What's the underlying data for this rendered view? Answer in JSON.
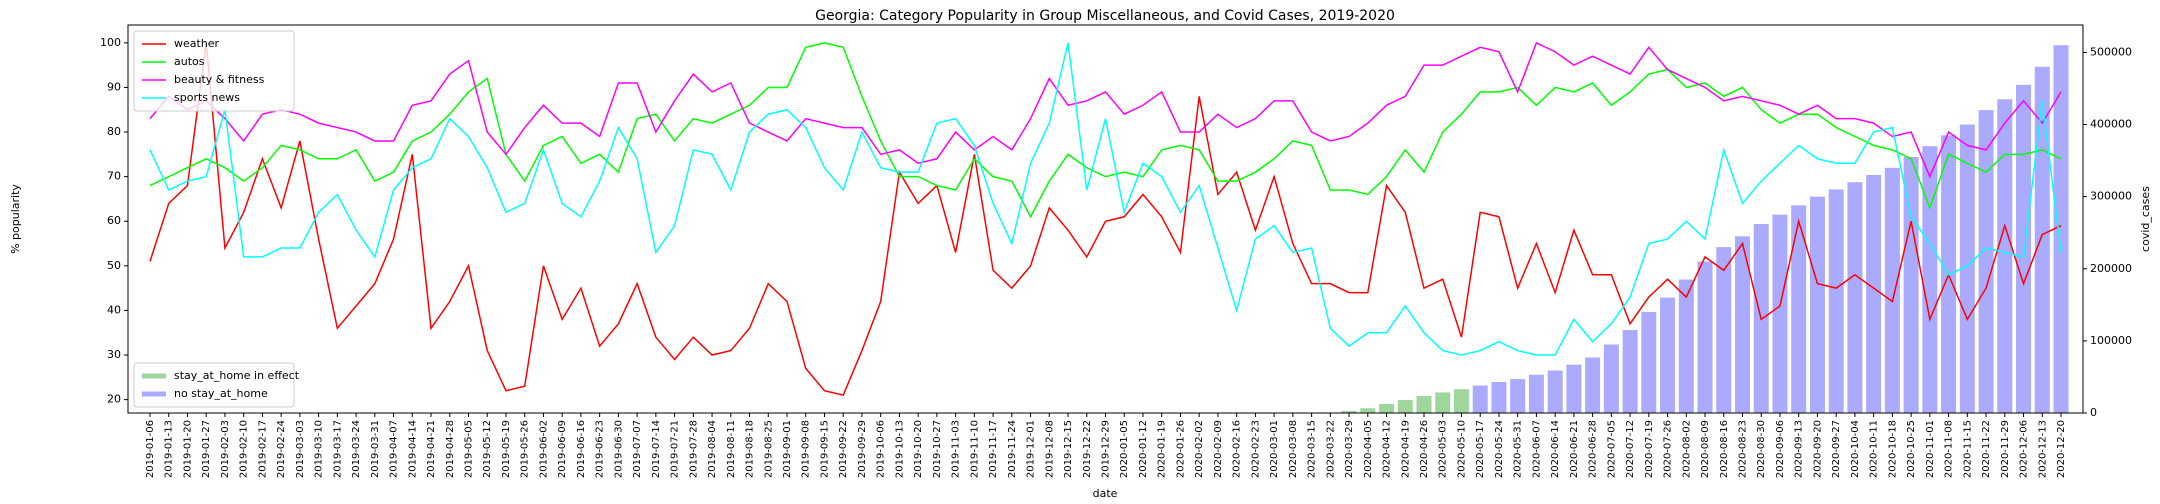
{
  "chart_data": {
    "type": "line",
    "title": "Georgia: Category Popularity in Group Miscellaneous, and Covid Cases, 2019-2020",
    "xlabel": "date",
    "ylabel": "% popularity",
    "y2label": "covid_cases",
    "categories": [
      "2019-01-06",
      "2019-01-13",
      "2019-01-20",
      "2019-01-27",
      "2019-02-03",
      "2019-02-10",
      "2019-02-17",
      "2019-02-24",
      "2019-03-03",
      "2019-03-10",
      "2019-03-17",
      "2019-03-24",
      "2019-03-31",
      "2019-04-07",
      "2019-04-14",
      "2019-04-21",
      "2019-04-28",
      "2019-05-05",
      "2019-05-12",
      "2019-05-19",
      "2019-05-26",
      "2019-06-02",
      "2019-06-09",
      "2019-06-16",
      "2019-06-23",
      "2019-06-30",
      "2019-07-07",
      "2019-07-14",
      "2019-07-21",
      "2019-07-28",
      "2019-08-04",
      "2019-08-11",
      "2019-08-18",
      "2019-08-25",
      "2019-09-01",
      "2019-09-08",
      "2019-09-15",
      "2019-09-22",
      "2019-09-29",
      "2019-10-06",
      "2019-10-13",
      "2019-10-20",
      "2019-10-27",
      "2019-11-03",
      "2019-11-10",
      "2019-11-17",
      "2019-11-24",
      "2019-12-01",
      "2019-12-08",
      "2019-12-15",
      "2019-12-22",
      "2019-12-29",
      "2020-01-05",
      "2020-01-12",
      "2020-01-19",
      "2020-01-26",
      "2020-02-02",
      "2020-02-09",
      "2020-02-16",
      "2020-02-23",
      "2020-03-01",
      "2020-03-08",
      "2020-03-15",
      "2020-03-22",
      "2020-03-29",
      "2020-04-05",
      "2020-04-12",
      "2020-04-19",
      "2020-04-26",
      "2020-05-03",
      "2020-05-10",
      "2020-05-17",
      "2020-05-24",
      "2020-05-31",
      "2020-06-07",
      "2020-06-14",
      "2020-06-21",
      "2020-06-28",
      "2020-07-05",
      "2020-07-12",
      "2020-07-19",
      "2020-07-26",
      "2020-08-02",
      "2020-08-09",
      "2020-08-16",
      "2020-08-23",
      "2020-08-30",
      "2020-09-06",
      "2020-09-13",
      "2020-09-20",
      "2020-09-27",
      "2020-10-04",
      "2020-10-11",
      "2020-10-18",
      "2020-10-25",
      "2020-11-01",
      "2020-11-08",
      "2020-11-15",
      "2020-11-22",
      "2020-11-29",
      "2020-12-06",
      "2020-12-13",
      "2020-12-20"
    ],
    "series": [
      {
        "name": "weather",
        "color": "#ff0000",
        "values": [
          51,
          64,
          68,
          100,
          54,
          62,
          74,
          63,
          78,
          56,
          36,
          41,
          46,
          56,
          75,
          36,
          42,
          50,
          31,
          22,
          23,
          50,
          38,
          45,
          32,
          37,
          46,
          34,
          29,
          34,
          30,
          31,
          36,
          46,
          42,
          27,
          22,
          21,
          31,
          42,
          71,
          64,
          68,
          53,
          75,
          49,
          45,
          50,
          63,
          58,
          52,
          60,
          61,
          66,
          61,
          53,
          88,
          66,
          71,
          58,
          70,
          55,
          46,
          46,
          44,
          44,
          68,
          62,
          45,
          47,
          34,
          62,
          61,
          45,
          55,
          44,
          58,
          48,
          48,
          37,
          43,
          47,
          43,
          52,
          49,
          55,
          38,
          41,
          60,
          46,
          45,
          48,
          45,
          42,
          60,
          38,
          48,
          38,
          45,
          59,
          46,
          57,
          59
        ]
      },
      {
        "name": "autos",
        "color": "#00ff00",
        "values": [
          68,
          70,
          72,
          74,
          72,
          69,
          72,
          77,
          76,
          74,
          74,
          76,
          69,
          71,
          78,
          80,
          84,
          89,
          92,
          75,
          69,
          77,
          79,
          73,
          75,
          71,
          83,
          84,
          78,
          83,
          82,
          84,
          86,
          90,
          90,
          99,
          100,
          99,
          88,
          78,
          70,
          70,
          68,
          67,
          74,
          70,
          69,
          61,
          69,
          75,
          72,
          70,
          71,
          70,
          76,
          77,
          76,
          69,
          69,
          71,
          74,
          78,
          77,
          67,
          67,
          66,
          70,
          76,
          71,
          80,
          84,
          89,
          89,
          90,
          86,
          90,
          89,
          91,
          86,
          89,
          93,
          94,
          90,
          91,
          88,
          90,
          85,
          82,
          84,
          84,
          81,
          79,
          77,
          76,
          74,
          63,
          75,
          73,
          71,
          75,
          75,
          76,
          74
        ]
      },
      {
        "name": "beauty & fitness",
        "color": "#ff00ff",
        "values": [
          83,
          88,
          85,
          87,
          83,
          78,
          84,
          85,
          84,
          82,
          81,
          80,
          78,
          78,
          86,
          87,
          93,
          96,
          80,
          75,
          81,
          86,
          82,
          82,
          79,
          91,
          91,
          80,
          87,
          93,
          89,
          91,
          82,
          80,
          78,
          83,
          82,
          81,
          81,
          75,
          76,
          73,
          74,
          80,
          76,
          79,
          76,
          83,
          92,
          86,
          87,
          89,
          84,
          86,
          89,
          80,
          80,
          84,
          81,
          83,
          87,
          87,
          80,
          78,
          79,
          82,
          86,
          88,
          95,
          95,
          97,
          99,
          98,
          89,
          100,
          98,
          95,
          97,
          95,
          93,
          99,
          94,
          92,
          90,
          87,
          88,
          87,
          86,
          84,
          86,
          83,
          83,
          82,
          79,
          80,
          70,
          80,
          77,
          76,
          82,
          87,
          82,
          89
        ]
      },
      {
        "name": "sports news",
        "color": "#00ffff",
        "values": [
          76,
          67,
          69,
          70,
          85,
          52,
          52,
          54,
          54,
          62,
          66,
          58,
          52,
          67,
          72,
          74,
          83,
          79,
          72,
          62,
          64,
          76,
          64,
          61,
          69,
          81,
          74,
          53,
          59,
          76,
          75,
          67,
          80,
          84,
          85,
          81,
          72,
          67,
          80,
          72,
          71,
          71,
          82,
          83,
          77,
          64,
          55,
          73,
          82,
          100,
          67,
          83,
          62,
          73,
          70,
          62,
          68,
          54,
          40,
          56,
          59,
          53,
          54,
          36,
          32,
          35,
          35,
          41,
          35,
          31,
          30,
          31,
          33,
          31,
          30,
          30,
          38,
          33,
          37,
          43,
          55,
          56,
          60,
          56,
          76,
          64,
          69,
          73,
          77,
          74,
          73,
          73,
          80,
          81,
          61,
          55,
          48,
          50,
          54,
          53,
          52,
          87,
          53
        ]
      },
      {
        "name": "stay_at_home in effect",
        "type": "bar",
        "axis": "y2",
        "color": "#9ed69e",
        "values": [
          null,
          null,
          null,
          null,
          null,
          null,
          null,
          null,
          null,
          null,
          null,
          null,
          null,
          null,
          null,
          null,
          null,
          null,
          null,
          null,
          null,
          null,
          null,
          null,
          null,
          null,
          null,
          null,
          null,
          null,
          null,
          null,
          null,
          null,
          null,
          null,
          null,
          null,
          null,
          null,
          null,
          null,
          null,
          null,
          null,
          null,
          null,
          null,
          null,
          null,
          null,
          null,
          null,
          null,
          null,
          null,
          null,
          null,
          null,
          null,
          null,
          null,
          null,
          null,
          2800,
          6600,
          12500,
          18000,
          23500,
          28500,
          33000,
          null,
          null,
          null,
          null,
          null,
          null,
          null,
          null,
          null,
          null,
          null,
          null,
          null,
          null,
          null,
          null,
          null,
          null,
          null,
          null,
          null,
          null,
          null,
          null,
          null,
          null,
          null,
          null,
          null,
          null,
          null,
          null
        ]
      },
      {
        "name": "no stay_at_home",
        "type": "bar",
        "axis": "y2",
        "color": "#aaaaff",
        "values": [
          null,
          null,
          null,
          null,
          null,
          null,
          null,
          null,
          null,
          null,
          null,
          null,
          null,
          null,
          null,
          null,
          null,
          null,
          null,
          null,
          null,
          null,
          null,
          null,
          null,
          null,
          null,
          null,
          null,
          null,
          null,
          null,
          null,
          null,
          null,
          null,
          null,
          null,
          null,
          null,
          null,
          null,
          null,
          null,
          null,
          null,
          null,
          null,
          null,
          null,
          null,
          null,
          null,
          null,
          null,
          null,
          null,
          null,
          null,
          null,
          null,
          null,
          null,
          null,
          null,
          null,
          null,
          null,
          null,
          null,
          null,
          38000,
          43000,
          47000,
          53000,
          59000,
          67000,
          77000,
          95000,
          115000,
          140000,
          160000,
          185000,
          210000,
          230000,
          245000,
          262000,
          275000,
          288000,
          300000,
          310000,
          320000,
          330000,
          340000,
          355000,
          370000,
          385000,
          400000,
          420000,
          435000,
          455000,
          480000,
          510000
        ]
      }
    ],
    "ylim": [
      17,
      104
    ],
    "yticks": [
      20,
      30,
      40,
      50,
      60,
      70,
      80,
      90,
      100
    ],
    "y2lim": [
      0,
      538000
    ],
    "y2ticks": [
      0,
      100000,
      200000,
      300000,
      400000,
      500000
    ],
    "legend_loc": "upper left",
    "bar_legend_loc": "lower left"
  }
}
